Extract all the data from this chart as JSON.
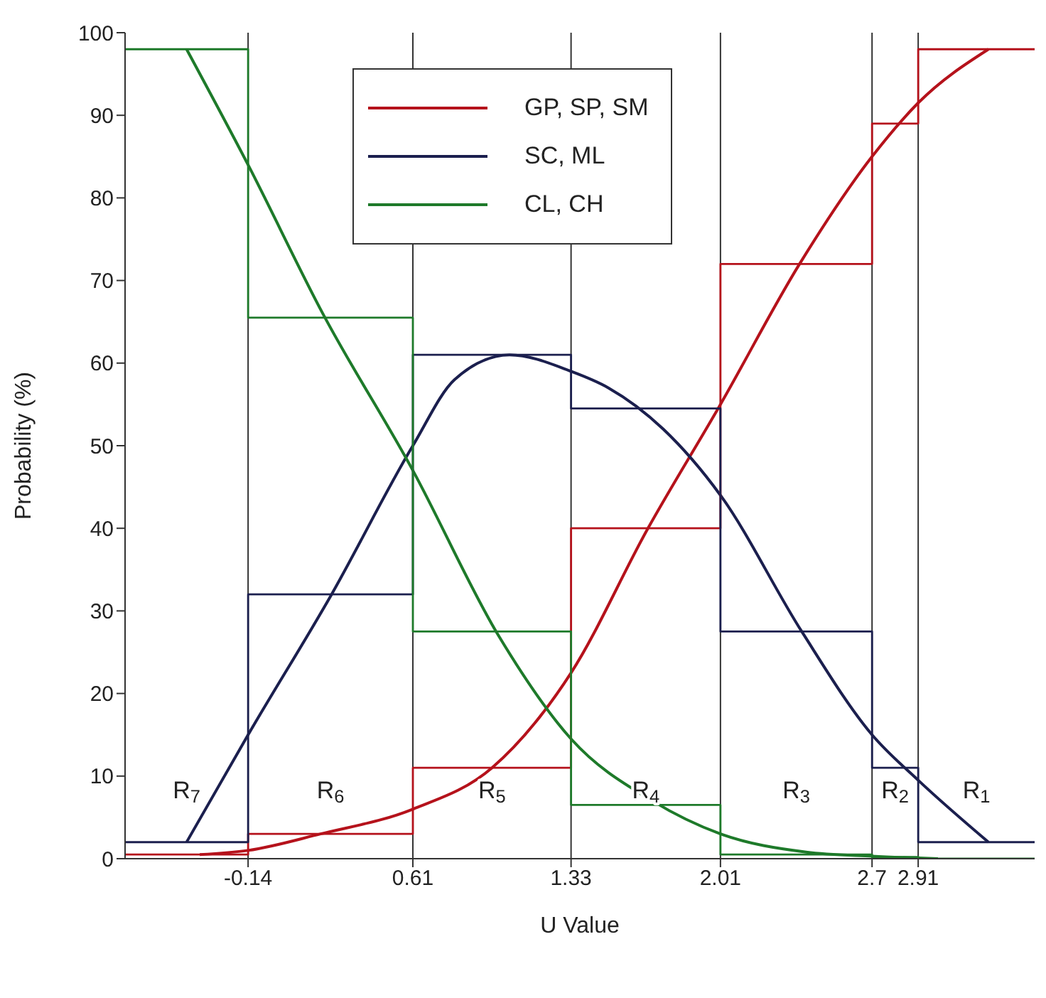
{
  "chart_data": {
    "type": "line",
    "xlabel": "U Value",
    "ylabel": "Probability (%)",
    "xlim": [
      -0.7,
      3.44
    ],
    "xticks": [
      -0.14,
      0.61,
      1.33,
      2.01,
      2.7,
      2.91
    ],
    "ylim": [
      0,
      100
    ],
    "yticks": [
      0,
      10,
      20,
      30,
      40,
      50,
      60,
      70,
      80,
      90,
      100
    ],
    "grid": false,
    "legend": "top",
    "marker": "none",
    "series": [
      {
        "name": "GP, SP, SM",
        "color": "#b5121b",
        "x": [
          -0.36,
          -0.14,
          0.19,
          0.61,
          0.97,
          1.33,
          1.68,
          2.01,
          2.37,
          2.7,
          2.91,
          3.23
        ],
        "values": [
          0.5,
          1,
          3,
          6,
          11,
          22.5,
          40,
          55,
          72,
          85,
          91.5,
          98
        ]
      },
      {
        "name": "SC, ML",
        "color": "#1b1f4e",
        "x": [
          -0.42,
          -0.14,
          0.24,
          0.61,
          0.8,
          1.05,
          1.33,
          1.5,
          1.75,
          2.01,
          2.38,
          2.7,
          2.91,
          3.23
        ],
        "values": [
          2,
          15,
          32,
          50,
          58,
          61,
          59,
          57,
          52,
          44,
          27.5,
          15,
          9.5,
          2
        ]
      },
      {
        "name": "CL, CH",
        "color": "#1e7a2a",
        "x": [
          -0.42,
          -0.14,
          0.2,
          0.61,
          1.0,
          1.33,
          1.7,
          2.01,
          2.4,
          2.7,
          3.0
        ],
        "values": [
          98,
          84,
          66,
          47,
          27,
          14.5,
          7,
          3,
          0.8,
          0.3,
          0
        ]
      },
      {
        "type": "step",
        "color": "#b5121b",
        "x": [
          -0.7,
          -0.14,
          0.61,
          1.33,
          2.01,
          2.7,
          2.91,
          3.44
        ],
        "values": [
          0.5,
          3,
          11,
          40,
          72,
          89,
          98,
          98
        ]
      },
      {
        "type": "step",
        "color": "#1b1f4e",
        "x": [
          -0.7,
          -0.14,
          0.61,
          1.33,
          2.01,
          2.7,
          2.91,
          3.44
        ],
        "values": [
          2,
          32,
          61,
          54.5,
          27.5,
          11,
          2,
          2
        ]
      },
      {
        "type": "step",
        "color": "#1e7a2a",
        "x": [
          -0.7,
          -0.14,
          0.61,
          1.33,
          2.01,
          2.7,
          2.91,
          3.44
        ],
        "values": [
          98,
          65.5,
          27.5,
          6.5,
          0.5,
          0.2,
          0,
          0
        ]
      }
    ],
    "ref_lines": [
      {
        "axis": "x",
        "value": -0.14,
        "color": "#333333"
      },
      {
        "axis": "x",
        "value": 0.61,
        "color": "#333333"
      },
      {
        "axis": "x",
        "value": 1.33,
        "color": "#333333"
      },
      {
        "axis": "x",
        "value": 2.01,
        "color": "#333333"
      },
      {
        "axis": "x",
        "value": 2.7,
        "color": "#333333"
      },
      {
        "axis": "x",
        "value": 2.91,
        "color": "#333333"
      }
    ],
    "annotations": [
      "R$_{7}$",
      "R$_{6}$",
      "R$_{5}$",
      "R$_{4}$",
      "R$_{3}$",
      "R$_{2}$",
      "R$_{1}$"
    ]
  }
}
